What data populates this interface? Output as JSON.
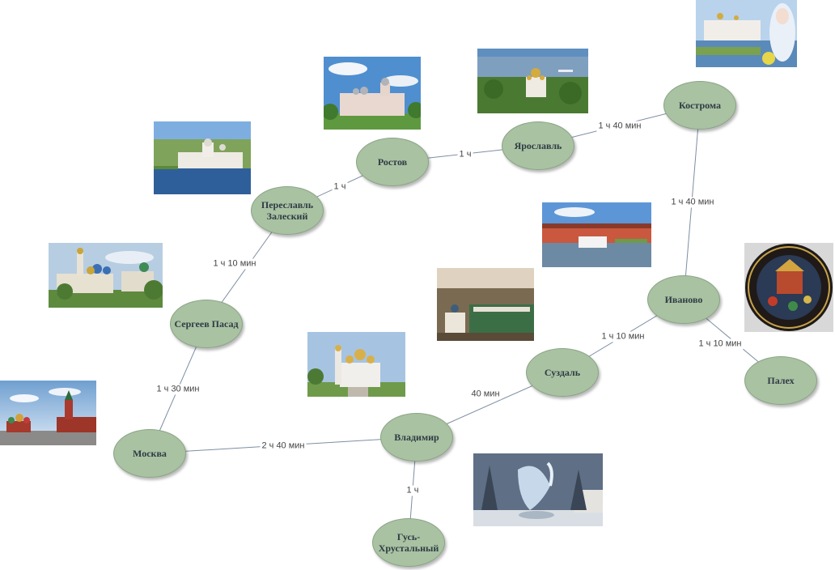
{
  "nodes": {
    "moskva": "Москва",
    "sergiev": "Сергеев Пасад",
    "pereslavl": "Переславль Залеский",
    "rostov": "Ростов",
    "yaroslavl": "Ярославль",
    "kostroma": "Кострома",
    "ivanovo": "Иваново",
    "palekh": "Палех",
    "suzdal": "Суздаль",
    "vladimir": "Владимир",
    "gus": "Гусь-Хрустальный"
  },
  "edges": {
    "moskva_sergiev": "1 ч 30 мин",
    "sergiev_pereslavl": "1 ч 10 мин",
    "pereslavl_rostov": "1 ч",
    "rostov_yaroslavl": "1 ч",
    "yaroslavl_kostroma": "1 ч 40 мин",
    "kostroma_ivanovo": "1 ч 40 мин",
    "ivanovo_palekh": "1 ч 10 мин",
    "ivanovo_suzdal": "1 ч 10 мин",
    "suzdal_vladimir": "40 мин",
    "moskva_vladimir": "2 ч 40 мин",
    "vladimir_gus": "1 ч"
  },
  "colors": {
    "node_fill": "#a9c2a2",
    "edge_stroke": "#7d8ea3"
  }
}
